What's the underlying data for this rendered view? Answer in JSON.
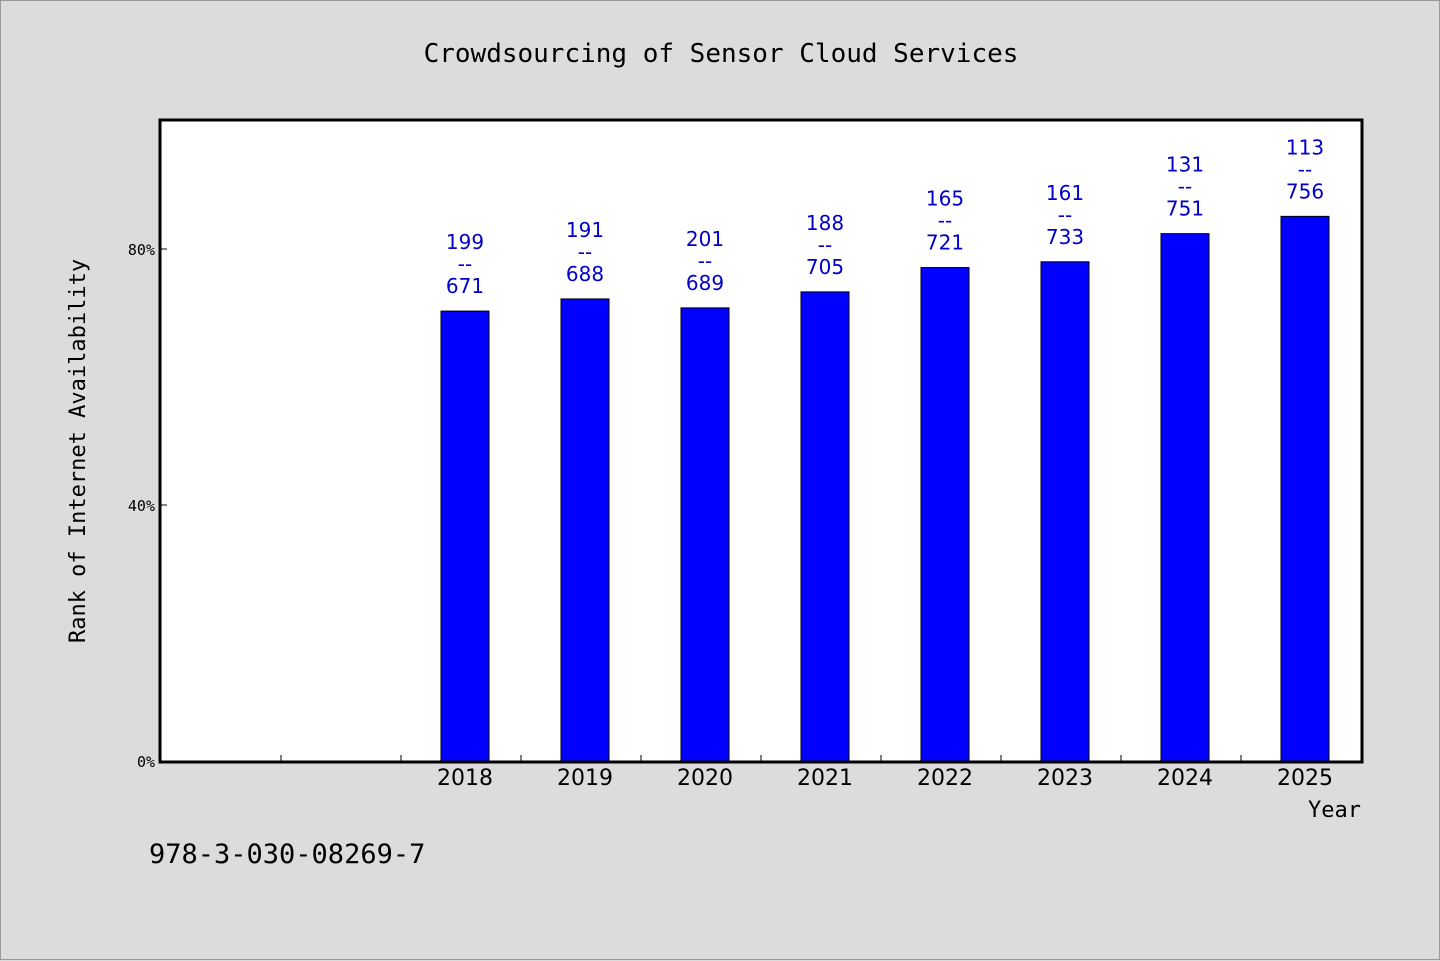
{
  "chart_data": {
    "type": "bar",
    "title": "Crowdsourcing of Sensor Cloud Services",
    "xlabel": "Year",
    "ylabel": "Rank of Internet Availability",
    "categories": [
      "",
      "",
      "2018",
      "2019",
      "2020",
      "2021",
      "2022",
      "2023",
      "2024",
      "2025"
    ],
    "values": [
      null,
      null,
      70.3,
      72.2,
      70.8,
      73.3,
      77.1,
      78.0,
      82.4,
      85.1
    ],
    "data_labels": [
      null,
      null,
      [
        "199",
        "--",
        "671"
      ],
      [
        "191",
        "--",
        "688"
      ],
      [
        "201",
        "--",
        "689"
      ],
      [
        "188",
        "--",
        "705"
      ],
      [
        "165",
        "--",
        "721"
      ],
      [
        "161",
        "--",
        "733"
      ],
      [
        "131",
        "--",
        "751"
      ],
      [
        "113",
        "--",
        "756"
      ]
    ],
    "yticks": [
      {
        "value": 0,
        "label": "0%"
      },
      {
        "value": 40,
        "label": "40%"
      },
      {
        "value": 80,
        "label": "80%"
      }
    ],
    "ylim": [
      0,
      100
    ],
    "grid": false,
    "legend": "none",
    "bar_color": "#0000ff",
    "label_color": "#0000c8"
  },
  "footer": {
    "isbn": "978-3-030-08269-7"
  }
}
